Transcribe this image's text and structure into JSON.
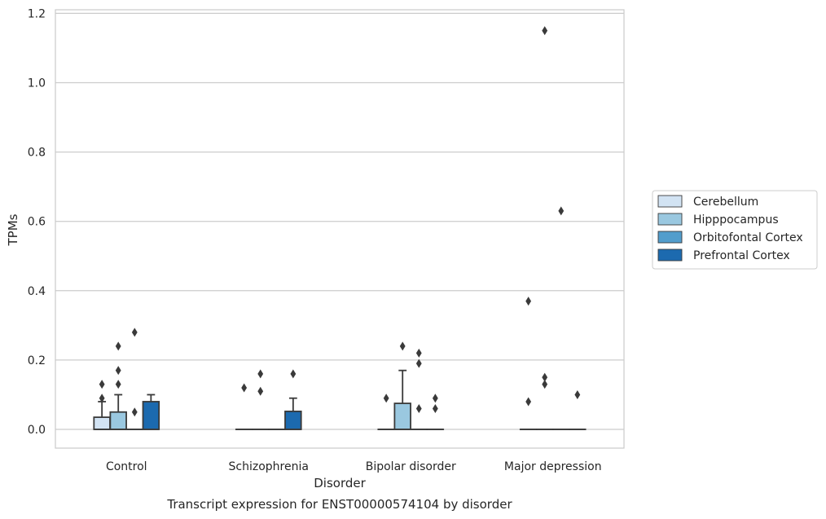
{
  "caption": "Transcript expression for ENST00000574104 by disorder",
  "chart_data": {
    "type": "box",
    "xlabel": "Disorder",
    "ylabel": "TPMs",
    "categories": [
      "Control",
      "Schizophrenia",
      "Bipolar disorder",
      "Major depression"
    ],
    "ylim": [
      -0.055,
      1.21
    ],
    "yticks": [
      "0.0",
      "0.2",
      "0.4",
      "0.6",
      "0.8",
      "1.0",
      "1.2"
    ],
    "grid": "horizontal",
    "legend_position": "right",
    "series": [
      {
        "name": "Cerebellum",
        "color": "#d2e3f3",
        "boxes": [
          {
            "q1": 0.0,
            "median": 0.0,
            "q3": 0.035,
            "whisker_low": 0.0,
            "whisker_high": 0.08,
            "outliers": [
              0.09,
              0.13
            ]
          },
          {
            "q1": 0.0,
            "median": 0.0,
            "q3": 0.0,
            "whisker_low": 0.0,
            "whisker_high": 0.0,
            "outliers": [
              0.12
            ]
          },
          {
            "q1": 0.0,
            "median": 0.0,
            "q3": 0.0,
            "whisker_low": 0.0,
            "whisker_high": 0.0,
            "outliers": [
              0.09
            ]
          },
          {
            "q1": 0.0,
            "median": 0.0,
            "q3": 0.0,
            "whisker_low": 0.0,
            "whisker_high": 0.0,
            "outliers": [
              0.08,
              0.37
            ]
          }
        ]
      },
      {
        "name": "Hipppocampus",
        "color": "#9ac8e0",
        "boxes": [
          {
            "q1": 0.0,
            "median": 0.0,
            "q3": 0.05,
            "whisker_low": 0.0,
            "whisker_high": 0.1,
            "outliers": [
              0.13,
              0.17,
              0.24
            ]
          },
          {
            "q1": 0.0,
            "median": 0.0,
            "q3": 0.0,
            "whisker_low": 0.0,
            "whisker_high": 0.0,
            "outliers": [
              0.11,
              0.16
            ]
          },
          {
            "q1": 0.0,
            "median": 0.0,
            "q3": 0.075,
            "whisker_low": 0.0,
            "whisker_high": 0.17,
            "outliers": [
              0.24
            ]
          },
          {
            "q1": 0.0,
            "median": 0.0,
            "q3": 0.0,
            "whisker_low": 0.0,
            "whisker_high": 0.0,
            "outliers": [
              0.13,
              0.15,
              1.15
            ]
          }
        ]
      },
      {
        "name": "Orbitofontal Cortex",
        "color": "#529dcc",
        "boxes": [
          {
            "q1": 0.0,
            "median": 0.0,
            "q3": 0.0,
            "whisker_low": 0.0,
            "whisker_high": 0.0,
            "outliers": [
              0.05,
              0.28
            ]
          },
          {
            "q1": 0.0,
            "median": 0.0,
            "q3": 0.0,
            "whisker_low": 0.0,
            "whisker_high": 0.0,
            "outliers": []
          },
          {
            "q1": 0.0,
            "median": 0.0,
            "q3": 0.0,
            "whisker_low": 0.0,
            "whisker_high": 0.0,
            "outliers": [
              0.06,
              0.19,
              0.22
            ]
          },
          {
            "q1": 0.0,
            "median": 0.0,
            "q3": 0.0,
            "whisker_low": 0.0,
            "whisker_high": 0.0,
            "outliers": [
              0.63
            ]
          }
        ]
      },
      {
        "name": "Prefrontal Cortex",
        "color": "#1c6aaf",
        "boxes": [
          {
            "q1": 0.0,
            "median": 0.0,
            "q3": 0.08,
            "whisker_low": 0.0,
            "whisker_high": 0.1,
            "outliers": []
          },
          {
            "q1": 0.0,
            "median": 0.0,
            "q3": 0.052,
            "whisker_low": 0.0,
            "whisker_high": 0.09,
            "outliers": [
              0.16
            ]
          },
          {
            "q1": 0.0,
            "median": 0.0,
            "q3": 0.0,
            "whisker_low": 0.0,
            "whisker_high": 0.0,
            "outliers": [
              0.06,
              0.09
            ]
          },
          {
            "q1": 0.0,
            "median": 0.0,
            "q3": 0.0,
            "whisker_low": 0.0,
            "whisker_high": 0.0,
            "outliers": [
              0.1
            ]
          }
        ]
      }
    ]
  }
}
